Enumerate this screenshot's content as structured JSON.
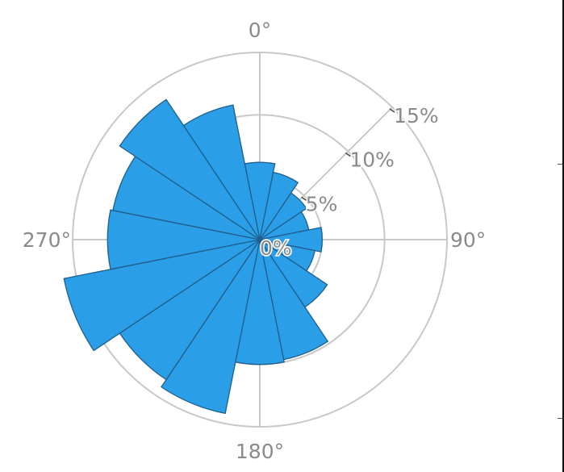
{
  "colors": {
    "bar_fill": "#2b9ee8",
    "bar_stroke": "#1f5f8b",
    "grid": "#c8c8c8",
    "label": "#8a8a8a"
  },
  "chart_data": {
    "type": "polar_bar",
    "title": "",
    "angle_unit": "degrees",
    "direction": "clockwise",
    "zero_location": "top",
    "angular_tick_labels": [
      {
        "angle": 0,
        "text": "0°"
      },
      {
        "angle": 90,
        "text": "90°"
      },
      {
        "angle": 180,
        "text": "180°"
      },
      {
        "angle": 270,
        "text": "270°"
      }
    ],
    "radial_axis": {
      "range": [
        0,
        15
      ],
      "unit": "%",
      "label_angle_deg": 45,
      "tick_labels": [
        {
          "value": 0,
          "text": "0%"
        },
        {
          "value": 5,
          "text": "5%"
        },
        {
          "value": 10,
          "text": "10%"
        },
        {
          "value": 15,
          "text": "15%"
        }
      ]
    },
    "sector_width_deg": 22.5,
    "bars": [
      {
        "direction_deg": 0,
        "value": 6.2
      },
      {
        "direction_deg": 22.5,
        "value": 5.5
      },
      {
        "direction_deg": 45,
        "value": 4.5
      },
      {
        "direction_deg": 67.5,
        "value": 4.0
      },
      {
        "direction_deg": 90,
        "value": 5.0
      },
      {
        "direction_deg": 112.5,
        "value": 4.5
      },
      {
        "direction_deg": 135,
        "value": 6.5
      },
      {
        "direction_deg": 157.5,
        "value": 9.8
      },
      {
        "direction_deg": 180,
        "value": 10.0
      },
      {
        "direction_deg": 202.5,
        "value": 14.2
      },
      {
        "direction_deg": 225,
        "value": 13.5
      },
      {
        "direction_deg": 247.5,
        "value": 16.0
      },
      {
        "direction_deg": 270,
        "value": 12.2
      },
      {
        "direction_deg": 292.5,
        "value": 12.0
      },
      {
        "direction_deg": 315,
        "value": 13.5
      },
      {
        "direction_deg": 337.5,
        "value": 11.0
      }
    ],
    "grid": true,
    "legend": "none"
  }
}
